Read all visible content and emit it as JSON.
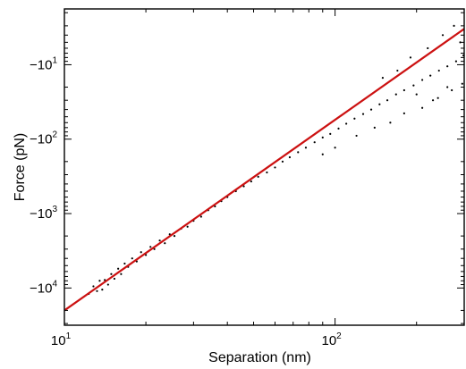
{
  "chart_data": {
    "type": "scatter",
    "title": "",
    "xlabel": "Separation (nm)",
    "ylabel": "Force (pN)",
    "x_scale": "log",
    "y_scale": "log-negative",
    "xlim": [
      10,
      300
    ],
    "ylim": [
      -31623,
      -1.78
    ],
    "grid": false,
    "legend": "none",
    "x_ticks": [
      {
        "value": 10,
        "base": "10",
        "exp": "1"
      },
      {
        "value": 100,
        "base": "10",
        "exp": "2"
      }
    ],
    "y_ticks": [
      {
        "value": -10,
        "base": "−10",
        "exp": "1"
      },
      {
        "value": -100,
        "base": "−10",
        "exp": "2"
      },
      {
        "value": -1000,
        "base": "−10",
        "exp": "3"
      },
      {
        "value": -10000,
        "base": "−10",
        "exp": "4"
      }
    ],
    "colors": {
      "points": "#000000",
      "fit_line": "#cc1111",
      "axes": "#000000"
    },
    "series": [
      {
        "kind": "points",
        "points": [
          [
            12.3,
            -12000
          ],
          [
            12.8,
            -9500
          ],
          [
            13.2,
            -11000
          ],
          [
            13.5,
            -8000
          ],
          [
            13.8,
            -10500
          ],
          [
            14.1,
            -7800
          ],
          [
            14.5,
            -9000
          ],
          [
            14.9,
            -6500
          ],
          [
            15.3,
            -7500
          ],
          [
            15.8,
            -5500
          ],
          [
            16.2,
            -6500
          ],
          [
            16.7,
            -4700
          ],
          [
            17.2,
            -5200
          ],
          [
            17.8,
            -4000
          ],
          [
            18.5,
            -4400
          ],
          [
            19.2,
            -3300
          ],
          [
            20,
            -3600
          ],
          [
            20.8,
            -2800
          ],
          [
            21.5,
            -3000
          ],
          [
            22.5,
            -2300
          ],
          [
            23.5,
            -2500
          ],
          [
            24.5,
            -1900
          ],
          [
            25.5,
            -2000
          ],
          [
            27,
            -1600
          ],
          [
            28.5,
            -1500
          ],
          [
            30,
            -1250
          ],
          [
            32,
            -1100
          ],
          [
            34,
            -900
          ],
          [
            36,
            -800
          ],
          [
            38,
            -680
          ],
          [
            40,
            -600
          ],
          [
            43,
            -500
          ],
          [
            46,
            -430
          ],
          [
            49,
            -370
          ],
          [
            52,
            -320
          ],
          [
            56,
            -280
          ],
          [
            60,
            -240
          ],
          [
            64,
            -200
          ],
          [
            68,
            -175
          ],
          [
            73,
            -150
          ],
          [
            78,
            -130
          ],
          [
            84,
            -110
          ],
          [
            90,
            -95
          ],
          [
            96,
            -85
          ],
          [
            103,
            -72
          ],
          [
            110,
            -62
          ],
          [
            118,
            -53
          ],
          [
            127,
            -46
          ],
          [
            136,
            -40
          ],
          [
            146,
            -34
          ],
          [
            156,
            -30
          ],
          [
            168,
            -25
          ],
          [
            180,
            -22
          ],
          [
            195,
            -19
          ],
          [
            210,
            -16
          ],
          [
            225,
            -14
          ],
          [
            242,
            -12
          ],
          [
            260,
            -10.5
          ],
          [
            280,
            -9
          ],
          [
            298,
            -7.5
          ],
          [
            150,
            -15
          ],
          [
            170,
            -12
          ],
          [
            190,
            -8
          ],
          [
            220,
            -6
          ],
          [
            250,
            -4
          ],
          [
            275,
            -3
          ],
          [
            290,
            -5
          ],
          [
            200,
            -25
          ],
          [
            230,
            -30
          ],
          [
            260,
            -20
          ],
          [
            120,
            -90
          ],
          [
            140,
            -70
          ],
          [
            160,
            -60
          ],
          [
            180,
            -45
          ],
          [
            210,
            -38
          ],
          [
            240,
            -28
          ],
          [
            270,
            -22
          ],
          [
            295,
            -18
          ],
          [
            100,
            -130
          ],
          [
            90,
            -160
          ]
        ]
      },
      {
        "kind": "line",
        "name": "",
        "points": [
          [
            10,
            -20000
          ],
          [
            300,
            -3.3
          ]
        ]
      }
    ]
  }
}
